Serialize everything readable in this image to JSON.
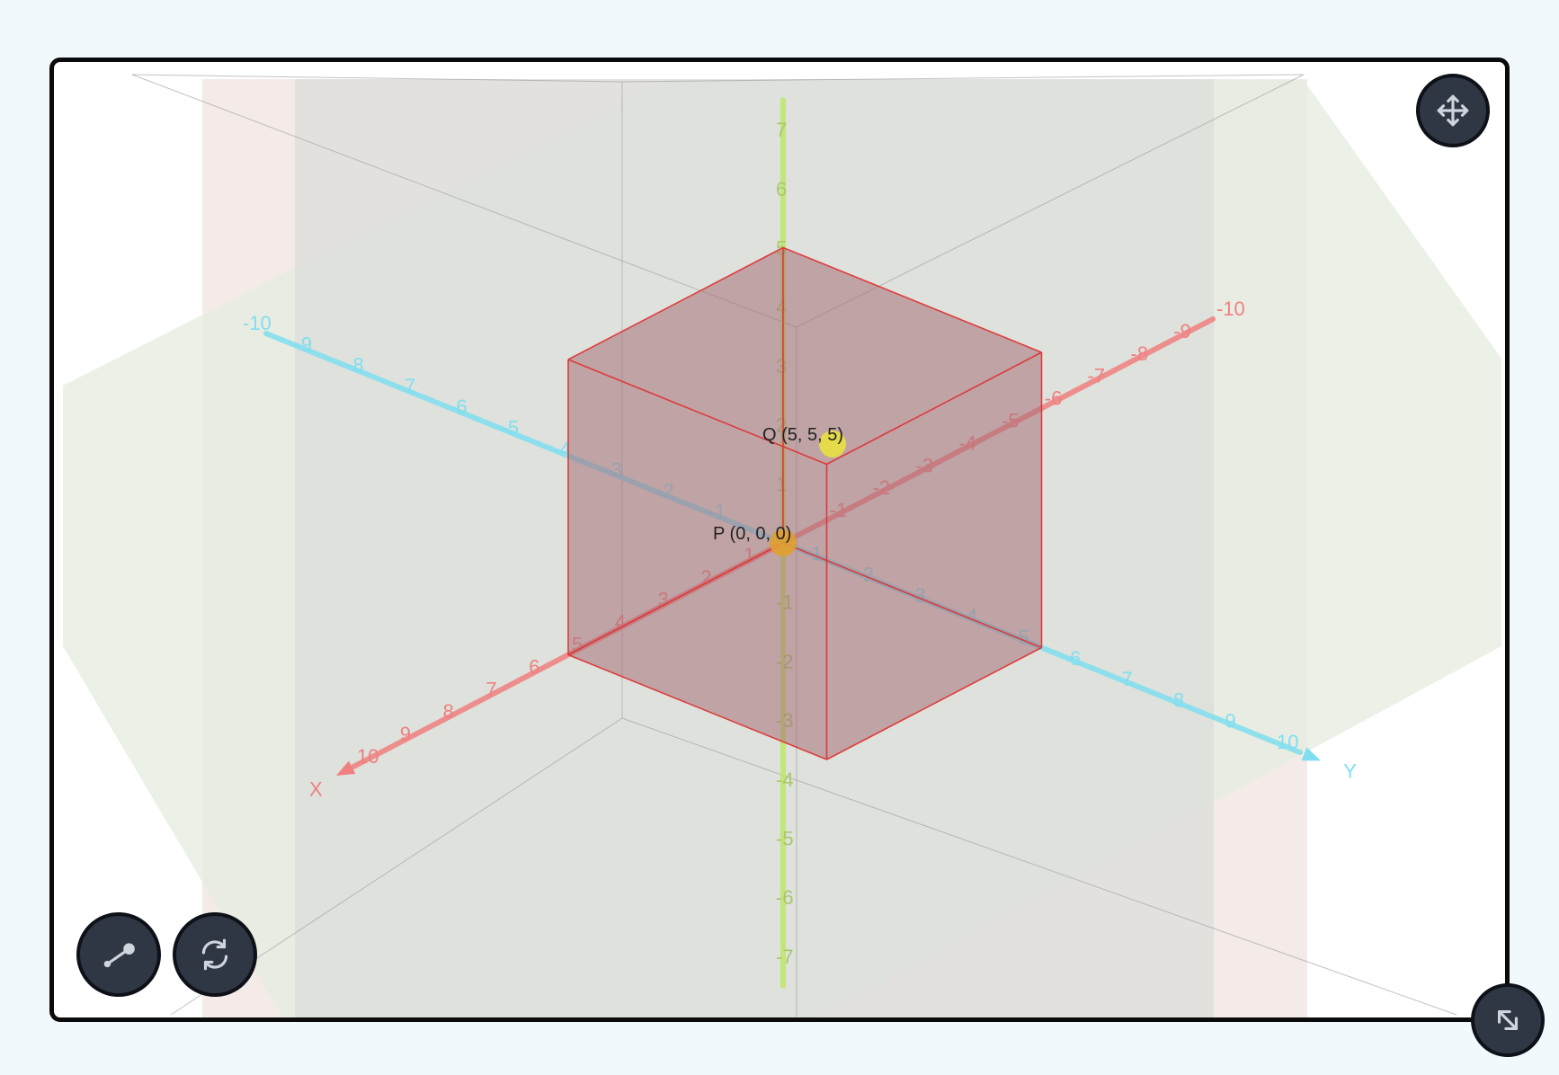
{
  "scene": {
    "axes": {
      "x": {
        "label": "X",
        "ticks": [
          "-10",
          "-9",
          "-8",
          "-7",
          "-6",
          "-5",
          "-4",
          "-3",
          "-2",
          "-1",
          "1",
          "2",
          "3",
          "4",
          "5",
          "6",
          "7",
          "8",
          "9",
          "10"
        ],
        "color": "#f08080"
      },
      "y": {
        "label": "Y",
        "ticks": [
          "-10",
          "-9",
          "-8",
          "-7",
          "-6",
          "-5",
          "-4",
          "-3",
          "-2",
          "-1",
          "1",
          "2",
          "3",
          "4",
          "5",
          "6",
          "7",
          "8",
          "9",
          "10"
        ],
        "color": "#7fdff0"
      },
      "z": {
        "ticks": [
          "-7",
          "-6",
          "-5",
          "-4",
          "-3",
          "-2",
          "-1",
          "1",
          "2",
          "3",
          "4",
          "5",
          "6",
          "7"
        ],
        "color": "#bfe86a"
      }
    },
    "points": [
      {
        "name": "P",
        "label": "P (0, 0, 0)",
        "x": 0,
        "y": 0,
        "z": 0,
        "color": "#e0a030"
      },
      {
        "name": "Q",
        "label": "Q (5, 5, 5)",
        "x": 5,
        "y": 5,
        "z": 5,
        "color": "#e8e040"
      }
    ],
    "cube": {
      "from": [
        0,
        0,
        0
      ],
      "to": [
        5,
        5,
        5
      ],
      "fill": "#a8707a",
      "edge": "#e03030"
    }
  },
  "controls": {
    "move": "move-arrows-icon",
    "line": "line-segment-icon",
    "reset": "rotate-refresh-icon",
    "expand": "expand-diagonal-icon"
  }
}
